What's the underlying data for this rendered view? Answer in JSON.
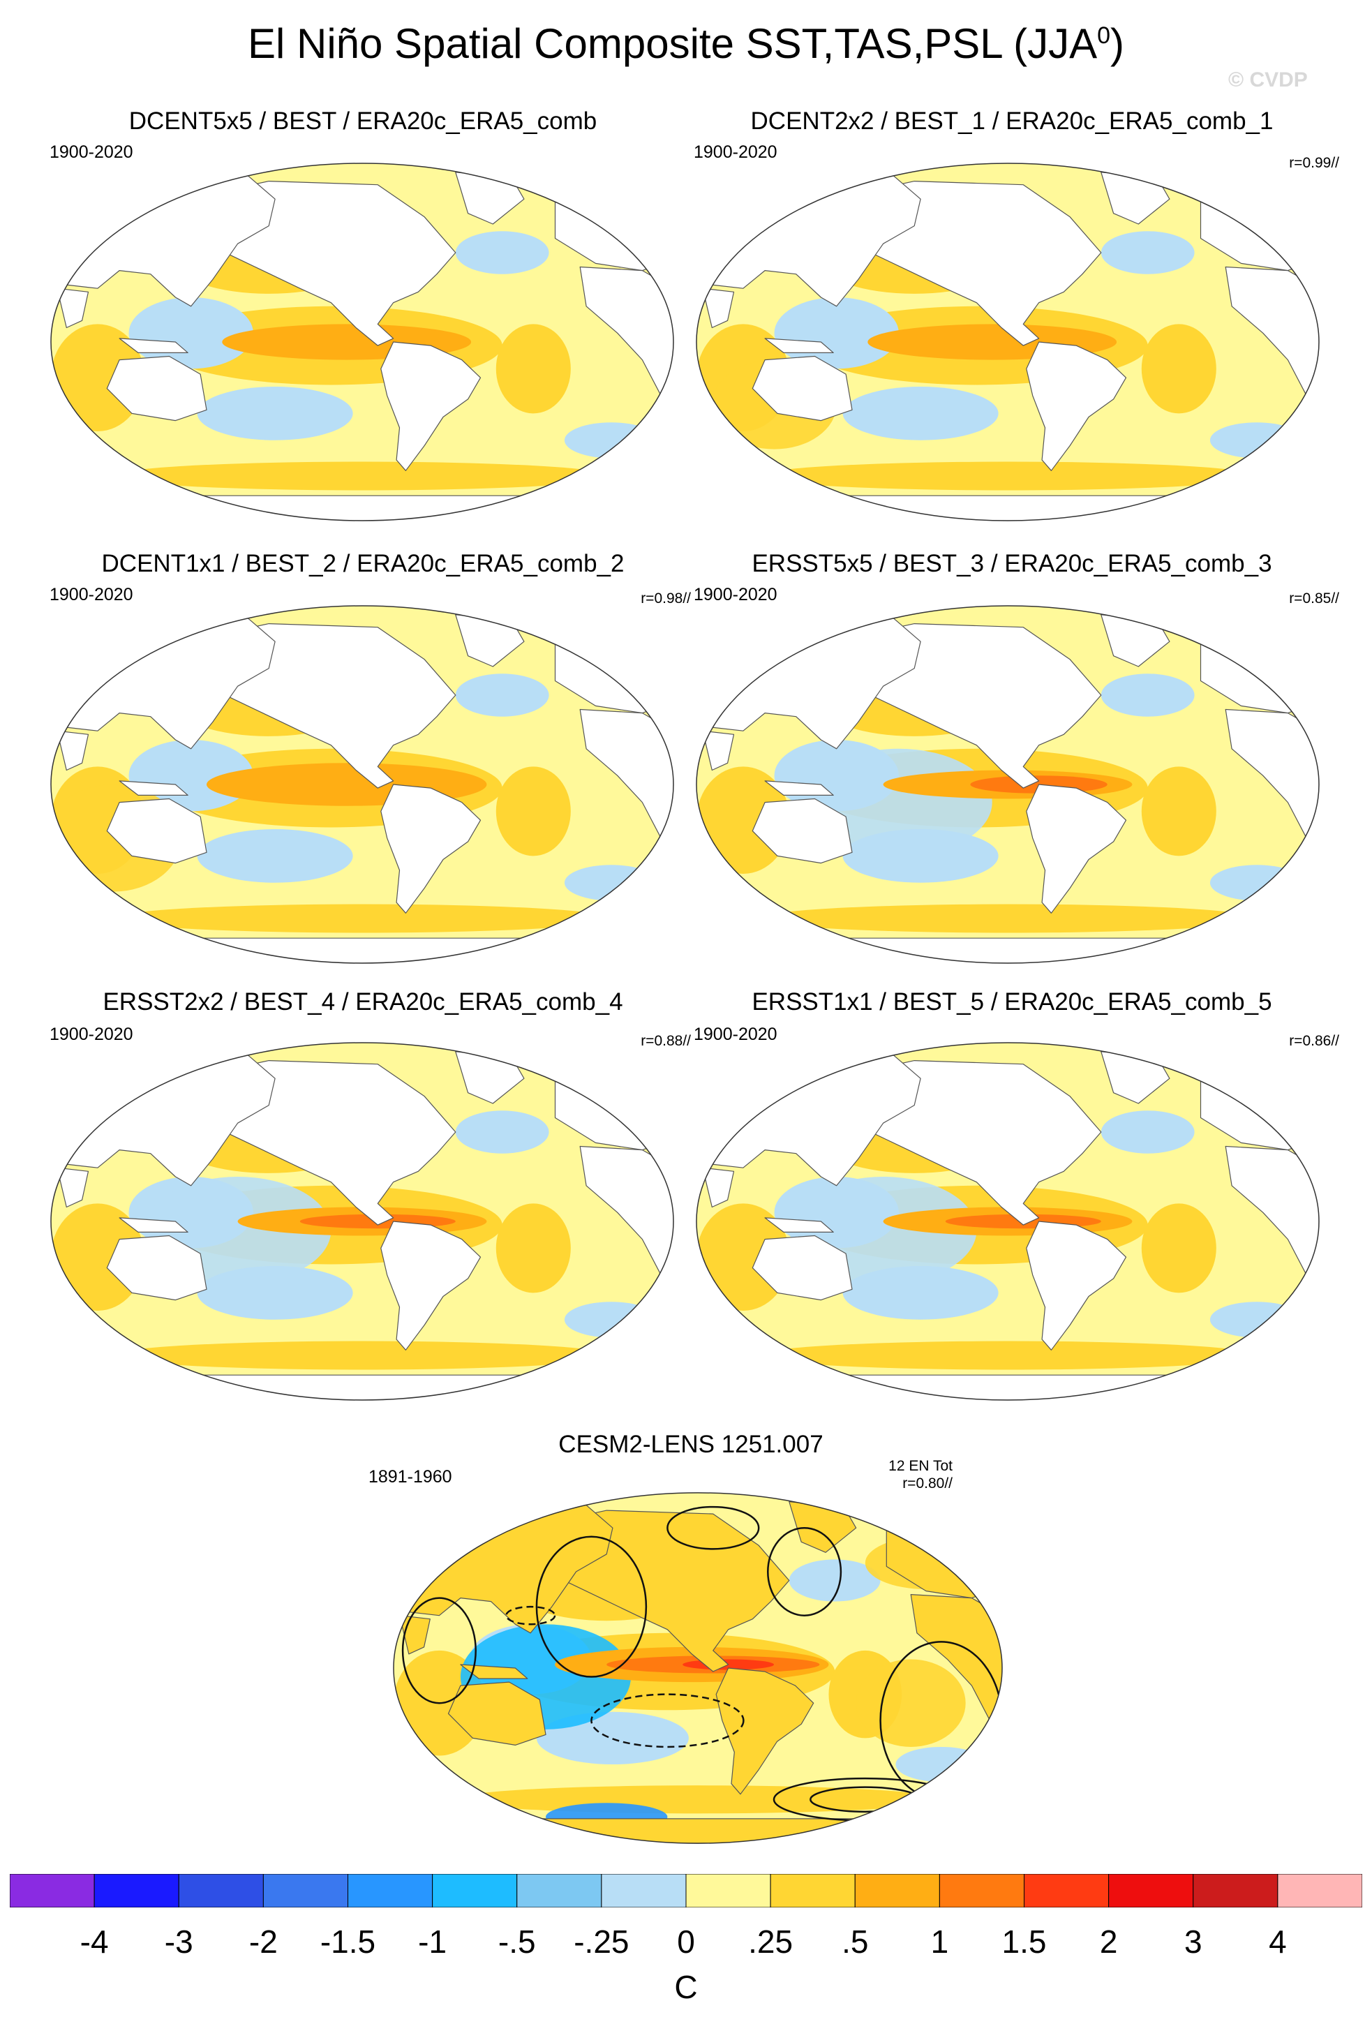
{
  "title": {
    "main": "El Niño Spatial Composite SST,TAS,PSL (JJA",
    "superscript": "0",
    "close": ")"
  },
  "watermark": "© CVDP",
  "chart_data": [
    {
      "type": "heatmap",
      "title": "DCENT5x5 / BEST / ERA20c_ERA5_comb",
      "period": "1900-2020",
      "correlation": "",
      "variant": 0,
      "region": "global",
      "projection": "Robinson",
      "units": "C"
    },
    {
      "type": "heatmap",
      "title": "DCENT2x2 / BEST_1 / ERA20c_ERA5_comb_1",
      "period": "1900-2020",
      "correlation": "r=0.99//",
      "variant": 1,
      "region": "global",
      "projection": "Robinson",
      "units": "C"
    },
    {
      "type": "heatmap",
      "title": "DCENT1x1 / BEST_2 / ERA20c_ERA5_comb_2",
      "period": "1900-2020",
      "correlation": "r=0.98//",
      "variant": 2,
      "region": "global",
      "projection": "Robinson",
      "units": "C"
    },
    {
      "type": "heatmap",
      "title": "ERSST5x5 / BEST_3 / ERA20c_ERA5_comb_3",
      "period": "1900-2020",
      "correlation": "r=0.85//",
      "variant": 3,
      "region": "global",
      "projection": "Robinson",
      "units": "C"
    },
    {
      "type": "heatmap",
      "title": "ERSST2x2 / BEST_4 / ERA20c_ERA5_comb_4",
      "period": "1900-2020",
      "correlation": "r=0.88//",
      "variant": 4,
      "region": "global",
      "projection": "Robinson",
      "units": "C"
    },
    {
      "type": "heatmap",
      "title": "ERSST1x1 / BEST_5 / ERA20c_ERA5_comb_5",
      "period": "1900-2020",
      "correlation": "r=0.86//",
      "variant": 5,
      "region": "global",
      "projection": "Robinson",
      "units": "C"
    },
    {
      "type": "heatmap",
      "title": "CESM2-LENS 1251.007",
      "period": "1891-1960",
      "correlation": "r=0.80//",
      "note": "12 EN Tot",
      "variant": 6,
      "region": "global",
      "projection": "Robinson",
      "units": "C",
      "overlay": "PSL contours (solid positive, dashed negative)"
    }
  ],
  "colorbar": {
    "colors": [
      "#8a2be2",
      "#1a1aff",
      "#2e4fe6",
      "#3a78ef",
      "#2896ff",
      "#1ebcff",
      "#7dc8f2",
      "#b8def6",
      "#fff99a",
      "#ffd633",
      "#ffae14",
      "#ff7a10",
      "#ff3b12",
      "#ee0e0e",
      "#cc1c1c",
      "#ffb6b6"
    ],
    "labels": [
      "-4",
      "-3",
      "-2",
      "-1.5",
      "-1",
      "-.5",
      "-.25",
      "0",
      ".25",
      ".5",
      "1",
      "1.5",
      "2",
      "3",
      "4"
    ],
    "unit": "C"
  }
}
